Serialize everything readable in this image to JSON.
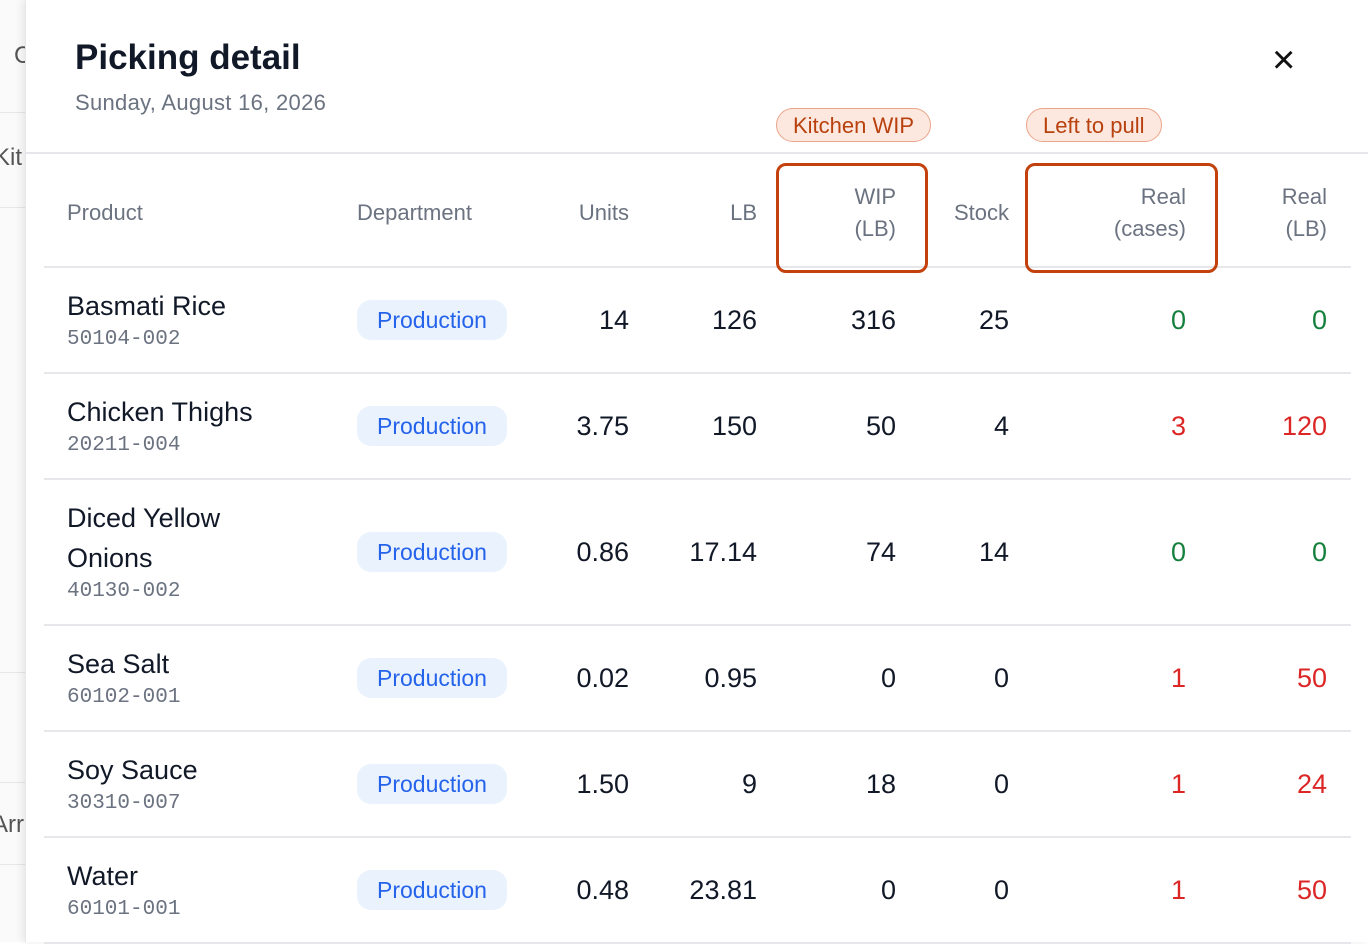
{
  "background": {
    "fragments": [
      "C",
      "Kit",
      "Arr"
    ]
  },
  "header": {
    "title": "Picking detail",
    "subtitle": "Sunday, August 16, 2026",
    "close": "×"
  },
  "annotations": [
    "Kitchen WIP",
    "Left to pull"
  ],
  "table": {
    "columns": [
      "Product",
      "Department",
      "Units",
      "LB",
      "WIP (LB)",
      "Stock",
      "Real (cases)",
      "Real (LB)"
    ],
    "rows": [
      {
        "name": "Basmati Rice",
        "code": "50104-002",
        "department": "Production",
        "units": "14",
        "lb": "126",
        "wip": "316",
        "stock": "25",
        "real_cases": "0",
        "real_lb": "0"
      },
      {
        "name": "Chicken Thighs",
        "code": "20211-004",
        "department": "Production",
        "units": "3.75",
        "lb": "150",
        "wip": "50",
        "stock": "4",
        "real_cases": "3",
        "real_lb": "120"
      },
      {
        "name": "Diced Yellow Onions",
        "code": "40130-002",
        "department": "Production",
        "units": "0.86",
        "lb": "17.14",
        "wip": "74",
        "stock": "14",
        "real_cases": "0",
        "real_lb": "0"
      },
      {
        "name": "Sea Salt",
        "code": "60102-001",
        "department": "Production",
        "units": "0.02",
        "lb": "0.95",
        "wip": "0",
        "stock": "0",
        "real_cases": "1",
        "real_lb": "50"
      },
      {
        "name": "Soy Sauce",
        "code": "30310-007",
        "department": "Production",
        "units": "1.50",
        "lb": "9",
        "wip": "18",
        "stock": "0",
        "real_cases": "1",
        "real_lb": "24"
      },
      {
        "name": "Water",
        "code": "60101-001",
        "department": "Production",
        "units": "0.48",
        "lb": "23.81",
        "wip": "0",
        "stock": "0",
        "real_cases": "1",
        "real_lb": "50"
      }
    ]
  }
}
